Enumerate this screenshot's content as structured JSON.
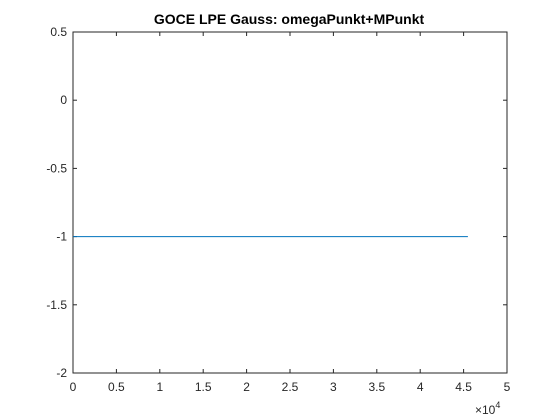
{
  "chart_data": {
    "type": "line",
    "title": "GOCE LPE Gauss: omegaPunkt+MPunkt",
    "xlabel": "",
    "ylabel": "",
    "xlim": [
      0,
      50000
    ],
    "ylim": [
      -2,
      0.5
    ],
    "x_ticks": [
      0,
      5000,
      10000,
      15000,
      20000,
      25000,
      30000,
      35000,
      40000,
      45000,
      50000
    ],
    "x_tick_labels": [
      "0",
      "0.5",
      "1",
      "1.5",
      "2",
      "2.5",
      "3",
      "3.5",
      "4",
      "4.5",
      "5"
    ],
    "x_exponent_label": {
      "base": "×10",
      "power": "4"
    },
    "y_ticks": [
      0.5,
      0,
      -0.5,
      -1,
      -1.5,
      -2
    ],
    "y_tick_labels": [
      "0.5",
      "0",
      "-0.5",
      "-1",
      "-1.5",
      "-2"
    ],
    "grid": false,
    "series": [
      {
        "color": "#0072bd",
        "x": [
          0,
          45500
        ],
        "y": [
          -1,
          -1
        ]
      }
    ]
  }
}
